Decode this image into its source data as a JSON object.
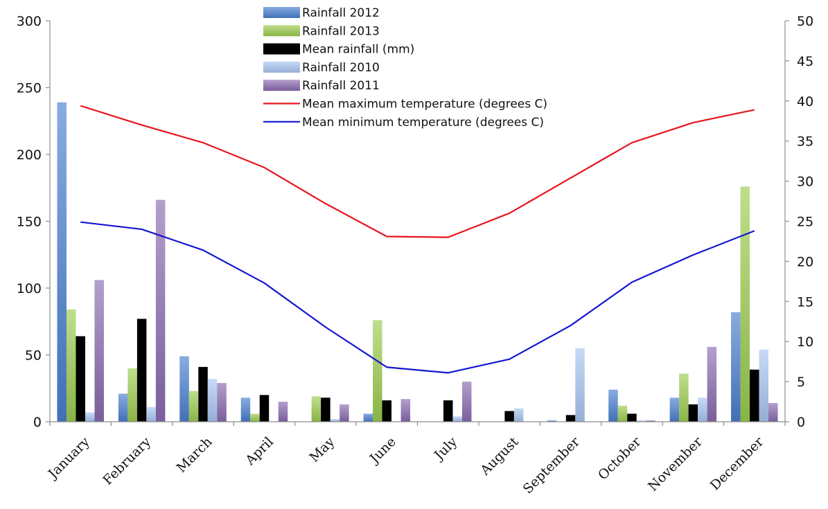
{
  "chart_data": {
    "type": "bar",
    "categories": [
      "January",
      "February",
      "March",
      "April",
      "May",
      "June",
      "July",
      "August",
      "September",
      "October",
      "November",
      "December"
    ],
    "series": [
      {
        "name": "Rainfall 2012",
        "axis": "left",
        "color": "#4a7fcf",
        "values": [
          239,
          21,
          49,
          18,
          0,
          6,
          0,
          0,
          1,
          24,
          18,
          82
        ]
      },
      {
        "name": "Rainfall 2013",
        "axis": "left",
        "color": "#9ccc4e",
        "values": [
          84,
          40,
          23,
          6,
          19,
          76,
          0,
          0,
          0,
          12,
          36,
          176
        ]
      },
      {
        "name": "Mean rainfall (mm)",
        "axis": "left",
        "color": "#000000",
        "values": [
          64,
          77,
          41,
          20,
          18,
          16,
          16,
          8,
          5,
          6,
          13,
          39
        ]
      },
      {
        "name": "Rainfall 2010",
        "axis": "left",
        "color": "#a9c6f2",
        "values": [
          7,
          11,
          32,
          0,
          2,
          0,
          4,
          10,
          55,
          1,
          18,
          54
        ]
      },
      {
        "name": "Rainfall 2011",
        "axis": "left",
        "color": "#8a6bb0",
        "values": [
          106,
          166,
          29,
          15,
          13,
          17,
          30,
          0,
          0,
          1,
          56,
          14
        ]
      },
      {
        "name": "Mean maximum temperature (degrees C)",
        "axis": "right",
        "type": "line",
        "color": "#e8141c",
        "values": [
          39.4,
          37.0,
          34.8,
          31.7,
          27.2,
          23.1,
          23.0,
          26.0,
          30.4,
          34.8,
          37.3,
          38.9
        ]
      },
      {
        "name": "Mean minimum temperature (degrees C)",
        "axis": "right",
        "type": "line",
        "color": "#1414d2",
        "values": [
          24.9,
          24.0,
          21.4,
          17.3,
          11.8,
          6.8,
          6.1,
          7.8,
          12.0,
          17.4,
          20.8,
          23.8
        ]
      }
    ],
    "y_left": {
      "ylim": [
        0,
        300
      ],
      "ticks": [
        "0",
        "50",
        "100",
        "150",
        "200",
        "250",
        "300"
      ]
    },
    "y_right": {
      "ylim": [
        0,
        50
      ],
      "ticks": [
        "0",
        "5",
        "10",
        "15",
        "20",
        "25",
        "30",
        "35",
        "40",
        "45",
        "50"
      ]
    },
    "legend": "top-center",
    "grid": false
  }
}
